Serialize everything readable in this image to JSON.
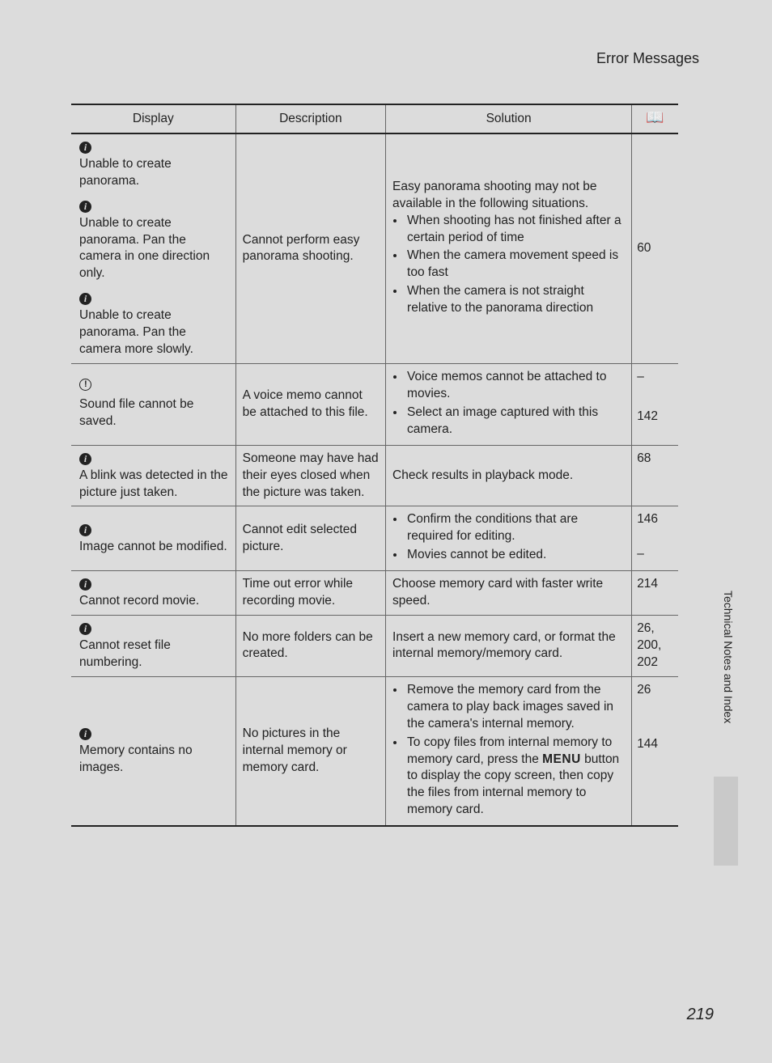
{
  "header": {
    "title": "Error Messages"
  },
  "side_label": "Technical Notes and Index",
  "page_number": "219",
  "table": {
    "columns": {
      "display": "Display",
      "description": "Description",
      "solution": "Solution",
      "ref_icon": "book-icon"
    },
    "rows": [
      {
        "display": [
          {
            "icon": "info",
            "text": "Unable to create panorama."
          },
          {
            "icon": "info",
            "text": "Unable to create panorama. Pan the camera in one direction only."
          },
          {
            "icon": "info",
            "text": "Unable to create panorama. Pan the camera more slowly."
          }
        ],
        "description": "Cannot perform easy panorama shooting.",
        "solution_intro": "Easy panorama shooting may not be available in the following situations.",
        "solution_bullets": [
          "When shooting has not finished after a certain period of time",
          "When the camera movement speed is too fast",
          "When the camera is not straight relative to the panorama direction"
        ],
        "refs": [
          "60"
        ]
      },
      {
        "display": [
          {
            "icon": "warn",
            "text": "Sound file cannot be saved."
          }
        ],
        "description": "A voice memo cannot be attached to this file.",
        "solution_bullets": [
          "Voice memos cannot be attached to movies.",
          "Select an image captured with this camera."
        ],
        "refs": [
          "–",
          "142"
        ]
      },
      {
        "display": [
          {
            "icon": "info",
            "text": "A blink was detected in the picture just taken."
          }
        ],
        "description": "Someone may have had their eyes closed when the picture was taken.",
        "solution_text": "Check results in playback mode.",
        "refs": [
          "68"
        ]
      },
      {
        "display": [
          {
            "icon": "info",
            "text": "Image cannot be modified."
          }
        ],
        "description": "Cannot edit selected picture.",
        "solution_bullets": [
          "Confirm the conditions that are required for editing.",
          "Movies cannot be edited."
        ],
        "refs": [
          "146",
          "–"
        ]
      },
      {
        "display": [
          {
            "icon": "info",
            "text": "Cannot record movie."
          }
        ],
        "description": "Time out error while recording movie.",
        "solution_text": "Choose memory card with faster write speed.",
        "refs": [
          "214"
        ]
      },
      {
        "display": [
          {
            "icon": "info",
            "text": "Cannot reset file numbering."
          }
        ],
        "description": "No more folders can be created.",
        "solution_text": "Insert a new memory card, or format the internal memory/memory card.",
        "refs": [
          "26, 200, 202"
        ]
      },
      {
        "display": [
          {
            "icon": "info",
            "text": "Memory contains no images."
          }
        ],
        "description": "No pictures in the internal memory or memory card.",
        "solution_bullets": [
          "Remove the memory card from the camera to play back images saved in the camera's internal memory.",
          {
            "pre": "To copy files from internal memory to memory card, press the ",
            "menu": "MENU",
            "post": " button to display the copy screen, then copy the files from internal memory to memory card."
          }
        ],
        "refs": [
          "26",
          "144"
        ]
      }
    ]
  }
}
